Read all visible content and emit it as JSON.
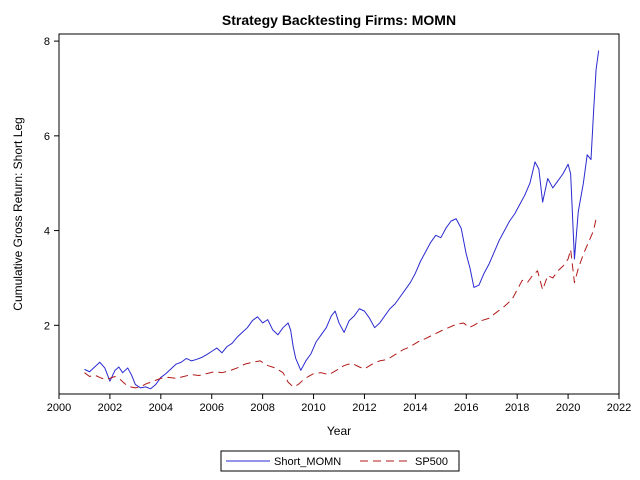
{
  "chart_data": {
    "type": "line",
    "title": "Strategy Backtesting  Firms: MOMN",
    "xlabel": "Year",
    "ylabel": "Cumulative Gross Return: Short Leg",
    "xlim": [
      2000,
      2022
    ],
    "ylim": [
      0.55,
      8.15
    ],
    "x_ticks": [
      2000,
      2002,
      2004,
      2006,
      2008,
      2010,
      2012,
      2014,
      2016,
      2018,
      2020,
      2022
    ],
    "y_ticks": [
      2,
      4,
      6,
      8
    ],
    "grid": false,
    "legend_position": "bottom-center",
    "series": [
      {
        "name": "Short_MOMN",
        "color": "#2a2ad0",
        "line_style": "solid",
        "points": [
          [
            2001.0,
            1.07
          ],
          [
            2001.2,
            1.02
          ],
          [
            2001.4,
            1.12
          ],
          [
            2001.6,
            1.22
          ],
          [
            2001.8,
            1.1
          ],
          [
            2002.0,
            0.82
          ],
          [
            2002.2,
            1.05
          ],
          [
            2002.35,
            1.12
          ],
          [
            2002.5,
            1.0
          ],
          [
            2002.7,
            1.1
          ],
          [
            2002.85,
            0.95
          ],
          [
            2003.0,
            0.75
          ],
          [
            2003.2,
            0.68
          ],
          [
            2003.4,
            0.7
          ],
          [
            2003.6,
            0.66
          ],
          [
            2003.8,
            0.75
          ],
          [
            2004.0,
            0.9
          ],
          [
            2004.2,
            0.98
          ],
          [
            2004.4,
            1.08
          ],
          [
            2004.6,
            1.18
          ],
          [
            2004.8,
            1.22
          ],
          [
            2005.0,
            1.3
          ],
          [
            2005.2,
            1.25
          ],
          [
            2005.4,
            1.28
          ],
          [
            2005.6,
            1.32
          ],
          [
            2005.8,
            1.38
          ],
          [
            2006.0,
            1.45
          ],
          [
            2006.2,
            1.52
          ],
          [
            2006.4,
            1.42
          ],
          [
            2006.6,
            1.55
          ],
          [
            2006.8,
            1.62
          ],
          [
            2007.0,
            1.75
          ],
          [
            2007.2,
            1.85
          ],
          [
            2007.4,
            1.95
          ],
          [
            2007.6,
            2.1
          ],
          [
            2007.8,
            2.18
          ],
          [
            2008.0,
            2.05
          ],
          [
            2008.2,
            2.12
          ],
          [
            2008.4,
            1.9
          ],
          [
            2008.6,
            1.8
          ],
          [
            2008.8,
            1.95
          ],
          [
            2009.0,
            2.05
          ],
          [
            2009.1,
            1.9
          ],
          [
            2009.2,
            1.55
          ],
          [
            2009.3,
            1.3
          ],
          [
            2009.5,
            1.05
          ],
          [
            2009.7,
            1.25
          ],
          [
            2009.9,
            1.4
          ],
          [
            2010.1,
            1.65
          ],
          [
            2010.3,
            1.8
          ],
          [
            2010.5,
            1.95
          ],
          [
            2010.7,
            2.2
          ],
          [
            2010.85,
            2.3
          ],
          [
            2011.0,
            2.05
          ],
          [
            2011.2,
            1.85
          ],
          [
            2011.4,
            2.1
          ],
          [
            2011.6,
            2.2
          ],
          [
            2011.8,
            2.35
          ],
          [
            2012.0,
            2.3
          ],
          [
            2012.2,
            2.15
          ],
          [
            2012.4,
            1.95
          ],
          [
            2012.6,
            2.05
          ],
          [
            2012.8,
            2.2
          ],
          [
            2013.0,
            2.35
          ],
          [
            2013.2,
            2.45
          ],
          [
            2013.4,
            2.6
          ],
          [
            2013.6,
            2.75
          ],
          [
            2013.8,
            2.9
          ],
          [
            2014.0,
            3.1
          ],
          [
            2014.2,
            3.35
          ],
          [
            2014.4,
            3.55
          ],
          [
            2014.6,
            3.75
          ],
          [
            2014.8,
            3.9
          ],
          [
            2015.0,
            3.85
          ],
          [
            2015.2,
            4.05
          ],
          [
            2015.4,
            4.2
          ],
          [
            2015.6,
            4.25
          ],
          [
            2015.8,
            4.05
          ],
          [
            2016.0,
            3.5
          ],
          [
            2016.15,
            3.2
          ],
          [
            2016.3,
            2.8
          ],
          [
            2016.5,
            2.85
          ],
          [
            2016.7,
            3.1
          ],
          [
            2016.9,
            3.3
          ],
          [
            2017.1,
            3.55
          ],
          [
            2017.3,
            3.8
          ],
          [
            2017.5,
            4.0
          ],
          [
            2017.7,
            4.2
          ],
          [
            2017.9,
            4.35
          ],
          [
            2018.1,
            4.55
          ],
          [
            2018.3,
            4.75
          ],
          [
            2018.5,
            5.0
          ],
          [
            2018.7,
            5.45
          ],
          [
            2018.85,
            5.3
          ],
          [
            2019.0,
            4.6
          ],
          [
            2019.2,
            5.1
          ],
          [
            2019.4,
            4.9
          ],
          [
            2019.6,
            5.05
          ],
          [
            2019.8,
            5.2
          ],
          [
            2020.0,
            5.4
          ],
          [
            2020.1,
            5.2
          ],
          [
            2020.25,
            3.4
          ],
          [
            2020.4,
            4.4
          ],
          [
            2020.6,
            5.0
          ],
          [
            2020.75,
            5.6
          ],
          [
            2020.9,
            5.5
          ],
          [
            2021.0,
            6.5
          ],
          [
            2021.1,
            7.4
          ],
          [
            2021.2,
            7.8
          ]
        ]
      },
      {
        "name": "SP500",
        "color": "#b21a1a",
        "line_style": "dashed",
        "points": [
          [
            2001.0,
            1.0
          ],
          [
            2001.2,
            0.92
          ],
          [
            2001.4,
            0.95
          ],
          [
            2001.6,
            0.9
          ],
          [
            2001.8,
            0.86
          ],
          [
            2002.0,
            0.88
          ],
          [
            2002.2,
            0.92
          ],
          [
            2002.4,
            0.86
          ],
          [
            2002.6,
            0.76
          ],
          [
            2002.8,
            0.7
          ],
          [
            2003.0,
            0.68
          ],
          [
            2003.2,
            0.7
          ],
          [
            2003.4,
            0.76
          ],
          [
            2003.6,
            0.8
          ],
          [
            2003.8,
            0.84
          ],
          [
            2004.0,
            0.88
          ],
          [
            2004.3,
            0.9
          ],
          [
            2004.6,
            0.88
          ],
          [
            2004.9,
            0.92
          ],
          [
            2005.2,
            0.96
          ],
          [
            2005.5,
            0.94
          ],
          [
            2005.8,
            0.98
          ],
          [
            2006.1,
            1.02
          ],
          [
            2006.4,
            1.0
          ],
          [
            2006.7,
            1.04
          ],
          [
            2007.0,
            1.1
          ],
          [
            2007.3,
            1.18
          ],
          [
            2007.6,
            1.22
          ],
          [
            2007.9,
            1.25
          ],
          [
            2008.2,
            1.15
          ],
          [
            2008.5,
            1.1
          ],
          [
            2008.8,
            1.0
          ],
          [
            2009.0,
            0.8
          ],
          [
            2009.2,
            0.7
          ],
          [
            2009.4,
            0.75
          ],
          [
            2009.6,
            0.85
          ],
          [
            2009.8,
            0.92
          ],
          [
            2010.0,
            0.98
          ],
          [
            2010.3,
            1.0
          ],
          [
            2010.6,
            0.96
          ],
          [
            2010.9,
            1.05
          ],
          [
            2011.2,
            1.15
          ],
          [
            2011.5,
            1.2
          ],
          [
            2011.8,
            1.12
          ],
          [
            2012.0,
            1.08
          ],
          [
            2012.3,
            1.18
          ],
          [
            2012.6,
            1.25
          ],
          [
            2012.9,
            1.28
          ],
          [
            2013.2,
            1.38
          ],
          [
            2013.5,
            1.48
          ],
          [
            2013.8,
            1.55
          ],
          [
            2014.1,
            1.65
          ],
          [
            2014.4,
            1.72
          ],
          [
            2014.7,
            1.8
          ],
          [
            2015.0,
            1.88
          ],
          [
            2015.3,
            1.95
          ],
          [
            2015.6,
            2.02
          ],
          [
            2015.9,
            2.05
          ],
          [
            2016.1,
            1.95
          ],
          [
            2016.3,
            2.0
          ],
          [
            2016.6,
            2.1
          ],
          [
            2016.9,
            2.15
          ],
          [
            2017.2,
            2.28
          ],
          [
            2017.5,
            2.4
          ],
          [
            2017.8,
            2.55
          ],
          [
            2018.0,
            2.75
          ],
          [
            2018.2,
            2.95
          ],
          [
            2018.4,
            2.9
          ],
          [
            2018.6,
            3.05
          ],
          [
            2018.8,
            3.15
          ],
          [
            2019.0,
            2.75
          ],
          [
            2019.2,
            3.05
          ],
          [
            2019.4,
            3.0
          ],
          [
            2019.6,
            3.15
          ],
          [
            2019.8,
            3.25
          ],
          [
            2020.0,
            3.4
          ],
          [
            2020.1,
            3.6
          ],
          [
            2020.25,
            2.9
          ],
          [
            2020.4,
            3.2
          ],
          [
            2020.6,
            3.5
          ],
          [
            2020.8,
            3.75
          ],
          [
            2021.0,
            4.0
          ],
          [
            2021.1,
            4.25
          ],
          [
            2021.2,
            4.3
          ]
        ]
      }
    ]
  }
}
